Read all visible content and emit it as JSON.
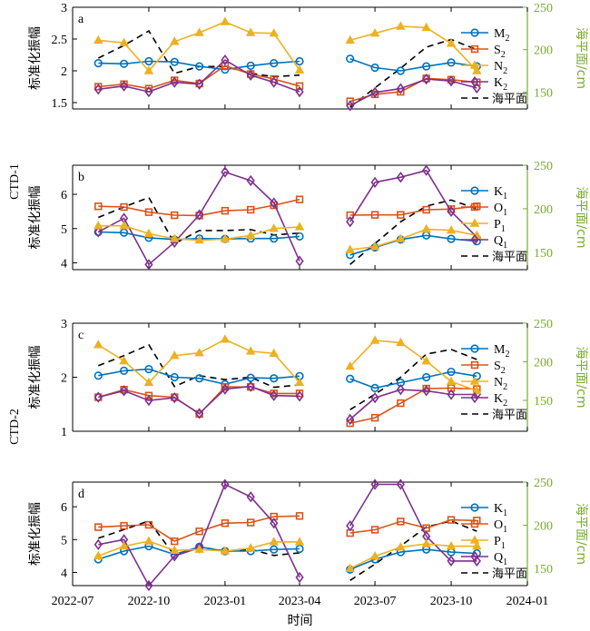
{
  "left_labels": [
    "CTD-1",
    "CTD-2"
  ],
  "colors": {
    "M2": "#0072BD",
    "S2": "#D95319",
    "N2": "#EDB120",
    "K2": "#7E2F8E",
    "K1": "#0072BD",
    "O1": "#D95319",
    "P1": "#EDB120",
    "Q1": "#7E2F8E",
    "sea_level": "#000000",
    "right_axis": "#77AC30"
  },
  "chart_data": [
    {
      "type": "line",
      "panel_label": "a",
      "ylabel": "标准化振幅",
      "ylabel_right": "海平面/cm",
      "ylim": [
        1.4,
        3.0
      ],
      "yticks": [
        "1.5",
        "2",
        "2.5",
        "3"
      ],
      "ylim_right": [
        130,
        250
      ],
      "yticks_right": [
        "150",
        "200",
        "250"
      ],
      "x_dates": [
        "2022-08-01",
        "2022-09-01",
        "2022-10-01",
        "2022-11-01",
        "2022-12-01",
        "2023-01-01",
        "2023-02-01",
        "2023-03-01",
        "2023-04-01",
        "2023-06-01",
        "2023-07-01",
        "2023-08-01",
        "2023-09-01",
        "2023-10-01",
        "2023-11-01"
      ],
      "series": [
        {
          "name": "M2",
          "marker": "circle",
          "values": [
            2.12,
            2.11,
            2.15,
            2.14,
            2.07,
            2.02,
            2.08,
            2.12,
            2.15,
            2.19,
            2.05,
            2.0,
            2.07,
            2.13,
            2.07
          ]
        },
        {
          "name": "S2",
          "marker": "square",
          "values": [
            1.75,
            1.79,
            1.72,
            1.85,
            1.8,
            2.08,
            1.95,
            1.87,
            1.76,
            1.52,
            1.63,
            1.67,
            1.88,
            1.86,
            1.82
          ]
        },
        {
          "name": "N2",
          "marker": "triangle",
          "values": [
            2.48,
            2.44,
            2.0,
            2.46,
            2.6,
            2.77,
            2.6,
            2.59,
            2.01,
            2.48,
            2.59,
            2.7,
            2.68,
            2.43,
            2.0
          ]
        },
        {
          "name": "K2",
          "marker": "diamond",
          "values": [
            1.71,
            1.76,
            1.67,
            1.82,
            1.79,
            2.17,
            1.93,
            1.82,
            1.67,
            1.45,
            1.66,
            1.72,
            1.87,
            1.84,
            1.73
          ]
        },
        {
          "name": "海平面",
          "style": "dashed",
          "axis": "right",
          "values": [
            190,
            205,
            222,
            172,
            180,
            180,
            172,
            168,
            170,
            132,
            155,
            178,
            203,
            212,
            200
          ]
        }
      ]
    },
    {
      "type": "line",
      "panel_label": "b",
      "ylabel": "标准化振幅",
      "ylabel_right": "海平面/cm",
      "ylim": [
        3.8,
        6.85
      ],
      "yticks": [
        "4",
        "5",
        "6"
      ],
      "ylim_right": [
        130,
        250
      ],
      "yticks_right": [
        "150",
        "200",
        "250"
      ],
      "x_dates": [
        "2022-08-01",
        "2022-09-01",
        "2022-10-01",
        "2022-11-01",
        "2022-12-01",
        "2023-01-01",
        "2023-02-01",
        "2023-03-01",
        "2023-04-01",
        "2023-06-01",
        "2023-07-01",
        "2023-08-01",
        "2023-09-01",
        "2023-10-01",
        "2023-11-01"
      ],
      "series": [
        {
          "name": "K1",
          "marker": "circle",
          "values": [
            4.9,
            4.88,
            4.73,
            4.68,
            4.71,
            4.7,
            4.71,
            4.71,
            4.77,
            4.23,
            4.45,
            4.68,
            4.8,
            4.7,
            4.63
          ]
        },
        {
          "name": "O1",
          "marker": "square",
          "values": [
            5.65,
            5.63,
            5.48,
            5.39,
            5.38,
            5.52,
            5.55,
            5.68,
            5.85,
            5.39,
            5.4,
            5.4,
            5.55,
            5.57,
            5.65
          ]
        },
        {
          "name": "P1",
          "marker": "triangle",
          "values": [
            5.08,
            5.08,
            4.85,
            4.7,
            4.66,
            4.69,
            4.8,
            5.0,
            5.05,
            4.38,
            4.47,
            4.7,
            4.98,
            4.95,
            4.8
          ]
        },
        {
          "name": "Q1",
          "marker": "diamond",
          "values": [
            4.9,
            5.3,
            3.95,
            4.6,
            5.4,
            6.65,
            6.4,
            5.75,
            4.05,
            5.2,
            6.35,
            6.5,
            6.7,
            5.5,
            4.75
          ]
        },
        {
          "name": "海平面",
          "style": "dashed",
          "axis": "right",
          "values": [
            190,
            202,
            213,
            160,
            175,
            175,
            176,
            170,
            172,
            136,
            160,
            185,
            203,
            210,
            200
          ]
        }
      ]
    },
    {
      "type": "line",
      "panel_label": "c",
      "ylabel": "标准化振幅",
      "ylabel_right": "海平面/cm",
      "ylim": [
        1.0,
        3.0
      ],
      "yticks": [
        "1",
        "2",
        "3"
      ],
      "ylim_right": [
        110,
        250
      ],
      "yticks_right": [
        "150",
        "200",
        "250"
      ],
      "x_dates": [
        "2022-08-01",
        "2022-09-01",
        "2022-10-01",
        "2022-11-01",
        "2022-12-01",
        "2023-01-01",
        "2023-02-01",
        "2023-03-01",
        "2023-04-01",
        "2023-06-01",
        "2023-07-01",
        "2023-08-01",
        "2023-09-01",
        "2023-10-01",
        "2023-11-01"
      ],
      "series": [
        {
          "name": "M2",
          "marker": "circle",
          "values": [
            2.03,
            2.12,
            2.15,
            2.0,
            1.98,
            1.87,
            1.99,
            1.98,
            2.02,
            1.97,
            1.8,
            1.9,
            2.0,
            2.1,
            2.02
          ]
        },
        {
          "name": "S2",
          "marker": "square",
          "values": [
            1.63,
            1.77,
            1.66,
            1.63,
            1.32,
            1.82,
            1.82,
            1.7,
            1.7,
            1.15,
            1.25,
            1.52,
            1.79,
            1.8,
            1.78
          ]
        },
        {
          "name": "N2",
          "marker": "triangle",
          "values": [
            2.6,
            2.3,
            1.9,
            2.4,
            2.45,
            2.7,
            2.48,
            2.44,
            1.9,
            2.2,
            2.68,
            2.64,
            2.3,
            1.92,
            1.75
          ]
        },
        {
          "name": "K2",
          "marker": "diamond",
          "values": [
            1.63,
            1.75,
            1.57,
            1.62,
            1.33,
            1.78,
            1.83,
            1.66,
            1.65,
            1.22,
            1.62,
            1.77,
            1.75,
            1.68,
            1.68
          ]
        },
        {
          "name": "海平面",
          "style": "dashed",
          "axis": "right",
          "values": [
            195,
            208,
            222,
            168,
            182,
            177,
            180,
            167,
            170,
            138,
            158,
            180,
            210,
            216,
            203
          ]
        }
      ]
    },
    {
      "type": "line",
      "panel_label": "d",
      "ylabel": "标准化振幅",
      "ylabel_right": "海平面/cm",
      "ylim": [
        3.6,
        6.75
      ],
      "yticks": [
        "4",
        "5",
        "6"
      ],
      "ylim_right": [
        130,
        250
      ],
      "yticks_right": [
        "150",
        "200",
        "250"
      ],
      "x_dates": [
        "2022-08-01",
        "2022-09-01",
        "2022-10-01",
        "2022-11-01",
        "2022-12-01",
        "2023-01-01",
        "2023-02-01",
        "2023-03-01",
        "2023-04-01",
        "2023-06-01",
        "2023-07-01",
        "2023-08-01",
        "2023-09-01",
        "2023-10-01",
        "2023-11-01"
      ],
      "series": [
        {
          "name": "K1",
          "marker": "circle",
          "values": [
            4.4,
            4.65,
            4.8,
            4.55,
            4.78,
            4.65,
            4.65,
            4.7,
            4.72,
            4.09,
            4.4,
            4.62,
            4.7,
            4.62,
            4.58
          ]
        },
        {
          "name": "O1",
          "marker": "square",
          "values": [
            5.38,
            5.42,
            5.45,
            4.95,
            5.25,
            5.5,
            5.52,
            5.7,
            5.72,
            5.2,
            5.3,
            5.55,
            5.35,
            5.6,
            5.58
          ]
        },
        {
          "name": "P1",
          "marker": "triangle",
          "values": [
            4.5,
            4.8,
            4.95,
            4.67,
            4.7,
            4.65,
            4.74,
            4.93,
            4.93,
            4.12,
            4.49,
            4.77,
            4.87,
            4.8,
            4.8
          ]
        },
        {
          "name": "Q1",
          "marker": "diamond",
          "values": [
            4.85,
            5.0,
            3.6,
            4.5,
            4.75,
            6.68,
            6.3,
            5.5,
            3.85,
            5.42,
            6.68,
            6.68,
            5.1,
            4.35,
            4.35
          ]
        },
        {
          "name": "海平面",
          "style": "dashed",
          "axis": "right",
          "values": [
            185,
            195,
            205,
            165,
            175,
            170,
            172,
            165,
            168,
            136,
            155,
            176,
            198,
            205,
            193
          ]
        }
      ]
    }
  ],
  "x_axis": {
    "title": "时间",
    "ticks": [
      "2022-07",
      "2022-10",
      "2023-01",
      "2023-04",
      "2023-07",
      "2023-10",
      "2024-01"
    ]
  }
}
